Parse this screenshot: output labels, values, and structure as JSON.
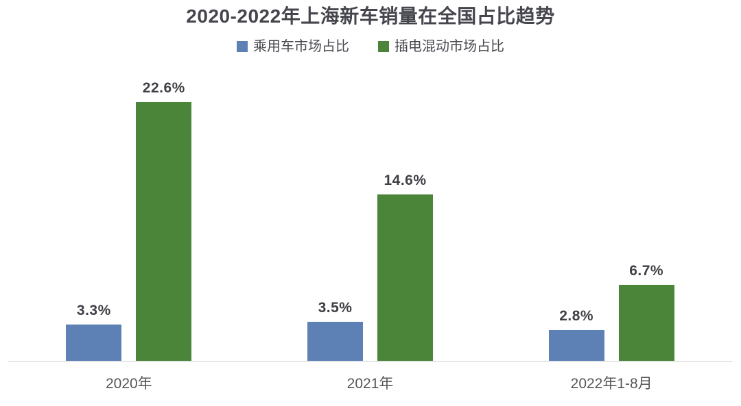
{
  "chart_data": {
    "type": "bar",
    "title": "2020-2022年上海新车销量在全国占比趋势",
    "categories": [
      "2020年",
      "2021年",
      "2022年1-8月"
    ],
    "series": [
      {
        "name": "乘用车市场占比",
        "color": "#5d81b5",
        "values": [
          3.3,
          3.5,
          2.8
        ]
      },
      {
        "name": "插电混动市场占比",
        "color": "#4a8539",
        "values": [
          22.6,
          14.6,
          6.7
        ]
      }
    ],
    "value_labels": [
      [
        "3.3%",
        "3.5%",
        "2.8%"
      ],
      [
        "22.6%",
        "14.6%",
        "6.7%"
      ]
    ],
    "value_suffix": "%",
    "ylim": [
      0,
      25
    ],
    "grid": false,
    "y_axis_visible": false,
    "legend_position": "top",
    "colors": {
      "title_text": "#45454e",
      "value_text": "#3f3f46",
      "axis_label_text": "#56565a",
      "axis_line": "#e6e6e6",
      "background": "#ffffff"
    }
  }
}
